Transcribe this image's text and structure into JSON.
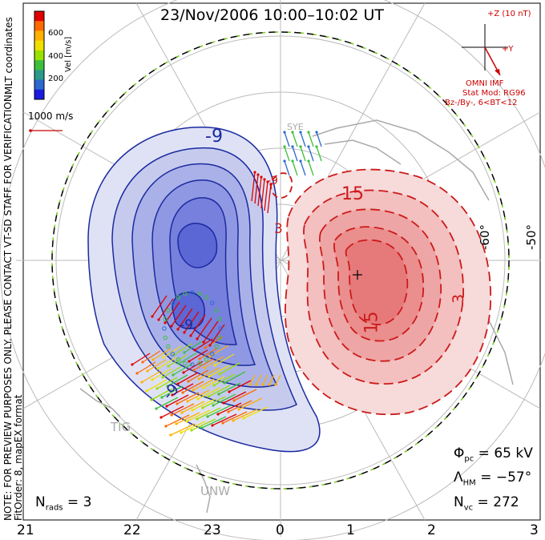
{
  "title": "23/Nov/2006 10:00–10:02 UT",
  "side_text": {
    "coords": "MLT coordinates",
    "notice": "NOTE: FOR PREVIEW PURPOSES ONLY. PLEASE CONTACT VT-SD STAFF FOR VERIFICATION.",
    "fit": "FitOrder: 8, mapEX format"
  },
  "colorbar": {
    "label": "Vel [m/s]",
    "ticks": [
      "600",
      "400",
      "200"
    ],
    "colors": [
      "#e00000",
      "#ff6a00",
      "#ffb000",
      "#f0e000",
      "#9ae000",
      "#3cc03c",
      "#2a9a8a",
      "#2a6ad0",
      "#1a1ae0"
    ]
  },
  "vector_scale": "1000 m/s",
  "imf": {
    "z_label": "+Z (10 nT)",
    "y_label": "+Y",
    "omni": "OMNI IMF",
    "stat_mod": "Stat Mod: RG96",
    "condition": "Bz-/By-, 6<BT<12"
  },
  "contour_labels": {
    "neg_a": "-9",
    "neg_b": "-9",
    "neg_c": "-9",
    "pos_a": "15",
    "pos_b": "15",
    "pos_c": "3",
    "pos_d": "3",
    "small": "-9"
  },
  "lat_labels": [
    "-60°",
    "-50°"
  ],
  "stations": [
    "TIG",
    "UNW",
    "SYE"
  ],
  "stats": {
    "phi_pc": "65 kV",
    "lambda_hm": "−57°",
    "n_vc": "272",
    "n_rads": "3"
  },
  "mlt_ticks": [
    "21",
    "22",
    "23",
    "0",
    "1",
    "2",
    "3"
  ]
}
